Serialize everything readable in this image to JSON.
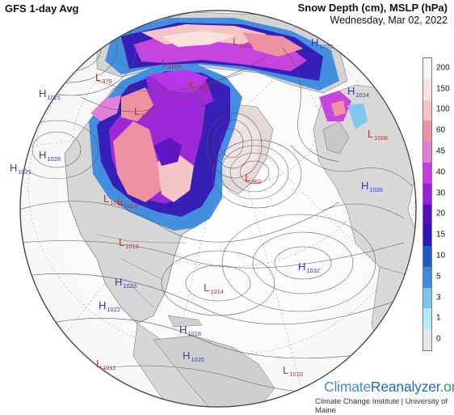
{
  "header": {
    "left_title": "GFS 1-day Avg",
    "right_title": "Snow Depth (cm), MSLP (hPa)",
    "date": "Wednesday, Mar 02, 2022"
  },
  "legend": {
    "bins": [
      {
        "label": "200",
        "color": "#f6f6f6"
      },
      {
        "label": "150",
        "color": "#fbe2e0"
      },
      {
        "label": "100",
        "color": "#f7c4c4"
      },
      {
        "label": "60",
        "color": "#f08fa0"
      },
      {
        "label": "45",
        "color": "#e27cd6"
      },
      {
        "label": "40",
        "color": "#c63ee0"
      },
      {
        "label": "30",
        "color": "#9a1fd8"
      },
      {
        "label": "20",
        "color": "#5a0cc4"
      },
      {
        "label": "15",
        "color": "#2d16b6"
      },
      {
        "label": "10",
        "color": "#1f5bc6"
      },
      {
        "label": "5",
        "color": "#3d8be0"
      },
      {
        "label": "3",
        "color": "#7cc4ee"
      },
      {
        "label": "1",
        "color": "#b6eaf6"
      },
      {
        "label": "0",
        "color": "#e8e8e8"
      }
    ]
  },
  "pressure_centers": [
    {
      "type": "H",
      "value": "1021",
      "color": "#2b3bbf"
    },
    {
      "type": "H",
      "value": "1028",
      "color": "#2b3bbf"
    },
    {
      "type": "H",
      "value": "1021",
      "color": "#2b3bbf"
    },
    {
      "type": "L",
      "value": "1001",
      "color": "#c0302a"
    },
    {
      "type": "L",
      "value": "1009",
      "color": "#c0302a"
    },
    {
      "type": "L",
      "value": "1010",
      "color": "#c0302a"
    },
    {
      "type": "L",
      "value": "1012",
      "color": "#c0302a"
    },
    {
      "type": "L",
      "value": "978",
      "color": "#c0302a"
    },
    {
      "type": "L",
      "value": "1011",
      "color": "#c0302a"
    },
    {
      "type": "H",
      "value": "1024",
      "color": "#2b3bbf"
    },
    {
      "type": "H",
      "value": "1023",
      "color": "#2b3bbf"
    },
    {
      "type": "L",
      "value": "1008",
      "color": "#c0302a"
    },
    {
      "type": "H",
      "value": "1026",
      "color": "#2b3bbf"
    },
    {
      "type": "L",
      "value": "962",
      "color": "#c0302a"
    },
    {
      "type": "L",
      "value": "1013",
      "color": "#c0302a"
    },
    {
      "type": "L",
      "value": "1016",
      "color": "#c0302a"
    },
    {
      "type": "H",
      "value": "1032",
      "color": "#2b3bbf"
    },
    {
      "type": "H",
      "value": "1023",
      "color": "#2b3bbf"
    },
    {
      "type": "L",
      "value": "1014",
      "color": "#c0302a"
    },
    {
      "type": "H",
      "value": "1022",
      "color": "#2b3bbf"
    },
    {
      "type": "H",
      "value": "1018",
      "color": "#2b3bbf"
    },
    {
      "type": "H",
      "value": "1020",
      "color": "#2b3bbf"
    },
    {
      "type": "L",
      "value": "1011",
      "color": "#c0302a"
    },
    {
      "type": "L",
      "value": "1010",
      "color": "#c0302a"
    }
  ],
  "branding": {
    "brand_a": "Climate",
    "brand_b": "Reanalyzer",
    "brand_c": ".org",
    "institute": "Climate Change Institute | University of Maine"
  }
}
